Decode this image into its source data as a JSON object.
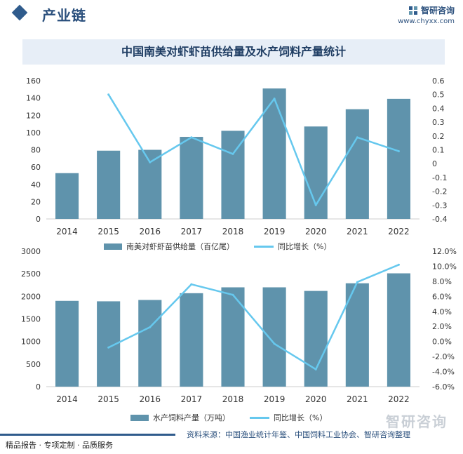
{
  "header": {
    "section_title": "产业链",
    "brand_name": "智研咨询",
    "brand_url": "www.chyxx.com"
  },
  "title": "中国南美对虾虾苗供给量及水产饲料产量统计",
  "colors": {
    "bar": "#5f93ac",
    "line": "#66c8ee",
    "axis": "#cccccc",
    "text": "#333333"
  },
  "chart_data": [
    {
      "type": "bar",
      "categories": [
        "2014",
        "2015",
        "2016",
        "2017",
        "2018",
        "2019",
        "2020",
        "2021",
        "2022"
      ],
      "series": [
        {
          "name": "南美对虾虾苗供给量（百亿尾）",
          "type": "bar",
          "axis": "left",
          "values": [
            53,
            79,
            80,
            95,
            102,
            151,
            107,
            127,
            139
          ]
        },
        {
          "name": "同比增长（%）",
          "type": "line",
          "axis": "right",
          "values": [
            null,
            0.5,
            0.01,
            0.19,
            0.07,
            0.47,
            -0.3,
            0.19,
            0.09
          ]
        }
      ],
      "ylim": [
        0,
        160
      ],
      "yticks": [
        "0",
        "20",
        "40",
        "60",
        "80",
        "100",
        "120",
        "140",
        "160"
      ],
      "y2lim": [
        -0.4,
        0.6
      ],
      "y2ticks": [
        "-0.4",
        "-0.3",
        "-0.2",
        "-0.1",
        "0",
        "0.1",
        "0.2",
        "0.3",
        "0.4",
        "0.5",
        "0.6"
      ],
      "legend": [
        "南美对虾虾苗供给量（百亿尾）",
        "同比增长（%）"
      ]
    },
    {
      "type": "bar",
      "categories": [
        "2014",
        "2015",
        "2016",
        "2017",
        "2018",
        "2019",
        "2020",
        "2021",
        "2022"
      ],
      "series": [
        {
          "name": "水产饲料产量（万吨）",
          "type": "bar",
          "axis": "left",
          "values": [
            1900,
            1890,
            1920,
            2070,
            2200,
            2200,
            2120,
            2290,
            2510
          ]
        },
        {
          "name": "同比增长（%）",
          "type": "line",
          "axis": "right",
          "values": [
            null,
            -0.8,
            1.9,
            7.6,
            6.2,
            -0.3,
            -3.7,
            7.9,
            10.2
          ]
        }
      ],
      "ylim": [
        0,
        3000
      ],
      "yticks": [
        "0",
        "500",
        "1000",
        "1500",
        "2000",
        "2500",
        "3000"
      ],
      "y2lim": [
        -6,
        12
      ],
      "y2ticks": [
        "-6.0%",
        "-4.0%",
        "-2.0%",
        "0.0%",
        "2.0%",
        "4.0%",
        "6.0%",
        "8.0%",
        "10.0%",
        "12.0%"
      ],
      "legend": [
        "水产饲料产量（万吨）",
        "同比增长（%）"
      ]
    }
  ],
  "footer": {
    "left": "精品报告 · 专项定制 · 品质服务",
    "source": "资料来源：中国渔业统计年鉴、中国饲料工业协会、智研咨询整理",
    "watermark": "智研咨询"
  }
}
